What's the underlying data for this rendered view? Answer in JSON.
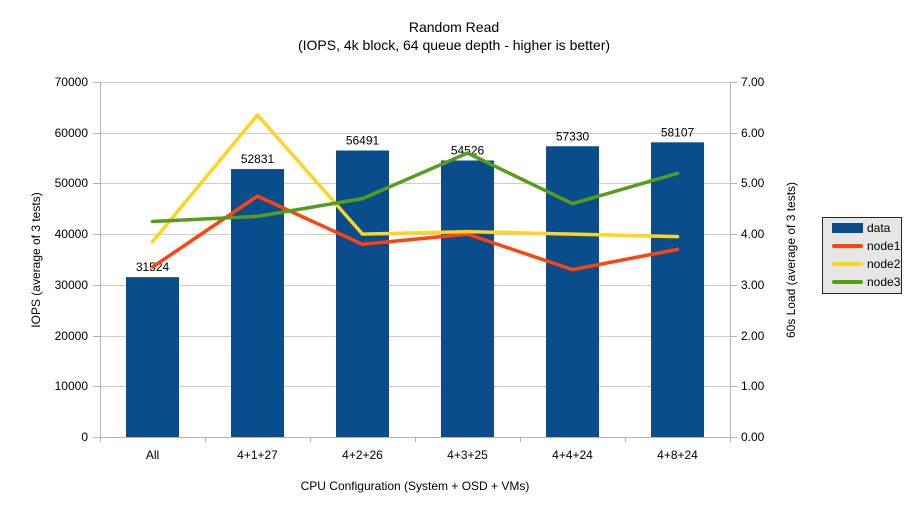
{
  "chart_data": {
    "type": "bar",
    "overlay_type": "line",
    "title": "Random Read",
    "subtitle": "(IOPS, 4k block, 64 queue depth - higher is better)",
    "categories": [
      "All",
      "4+1+27",
      "4+2+26",
      "4+3+25",
      "4+4+24",
      "4+8+24"
    ],
    "bar_series": {
      "name": "data",
      "axis": "left",
      "values": [
        31524,
        52831,
        56491,
        54526,
        57330,
        58107
      ]
    },
    "line_series": [
      {
        "name": "node1",
        "axis": "right",
        "values": [
          3.35,
          4.75,
          3.8,
          4.0,
          3.3,
          3.7
        ]
      },
      {
        "name": "node2",
        "axis": "right",
        "values": [
          3.85,
          6.35,
          4.0,
          4.05,
          4.0,
          3.95
        ]
      },
      {
        "name": "node3",
        "axis": "right",
        "values": [
          4.25,
          4.35,
          4.7,
          5.6,
          4.6,
          5.2
        ]
      }
    ],
    "left_axis": {
      "label": "IOPS (average of 3 tests)",
      "min": 0,
      "max": 70000,
      "step": 10000,
      "decimals": 0
    },
    "right_axis": {
      "label": "60s Load (average of 3 tests)",
      "min": 0,
      "max": 7,
      "step": 1,
      "decimals": 2
    },
    "x_axis_label": "CPU Configuration (System + OSD + VMs)",
    "legend": {
      "position": "right",
      "entries": [
        "data",
        "node1",
        "node2",
        "node3"
      ]
    },
    "grid": "horizontal",
    "colors": {
      "data": "#0a4d8c",
      "node1": "#ff420e",
      "node2": "#ffd320",
      "node3": "#579d1c",
      "gridline": "#cdcdcd",
      "axis": "#b3b3b3",
      "legend_bg": "#e6e6e6"
    }
  }
}
